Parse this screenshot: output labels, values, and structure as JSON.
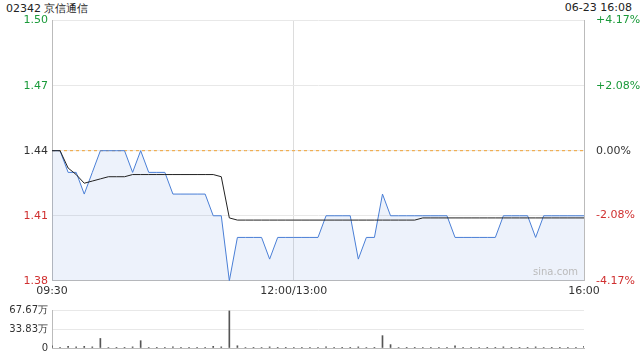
{
  "chart_data": [
    {
      "type": "line",
      "title": "02342 京信通信",
      "subtitle": "06-23 16:08",
      "watermark": "sina.com",
      "categories": [
        "09:30",
        null,
        null,
        null,
        null,
        null,
        null,
        null,
        null,
        null,
        null,
        null,
        null,
        null,
        null,
        null,
        null,
        null,
        null,
        null,
        null,
        null,
        null,
        null,
        null,
        null,
        null,
        null,
        null,
        null,
        "12:00/13:00",
        null,
        null,
        null,
        null,
        null,
        null,
        null,
        null,
        null,
        null,
        null,
        null,
        null,
        null,
        null,
        null,
        null,
        null,
        null,
        null,
        null,
        null,
        null,
        null,
        null,
        null,
        null,
        null,
        null,
        null,
        null,
        null,
        null,
        null,
        null,
        "16:00"
      ],
      "series": [
        {
          "color": "#4a7fd6",
          "values": [
            1.44,
            1.44,
            1.43,
            1.43,
            1.42,
            1.43,
            1.44,
            1.44,
            1.44,
            1.44,
            1.43,
            1.44,
            1.43,
            1.43,
            1.43,
            1.42,
            1.42,
            1.42,
            1.42,
            1.42,
            1.41,
            1.41,
            1.38,
            1.4,
            1.4,
            1.4,
            1.4,
            1.39,
            1.4,
            1.4,
            1.4,
            1.4,
            1.4,
            1.4,
            1.41,
            1.41,
            1.41,
            1.41,
            1.39,
            1.4,
            1.4,
            1.42,
            1.41,
            1.41,
            1.41,
            1.41,
            1.41,
            1.41,
            1.41,
            1.41,
            1.4,
            1.4,
            1.4,
            1.4,
            1.4,
            1.4,
            1.41,
            1.41,
            1.41,
            1.41,
            1.4,
            1.41,
            1.41,
            1.41,
            1.41,
            1.41,
            1.41
          ]
        },
        {
          "color": "#222222",
          "values": [
            1.44,
            1.44,
            1.432,
            1.429,
            1.425,
            1.426,
            1.427,
            1.428,
            1.428,
            1.428,
            1.429,
            1.429,
            1.429,
            1.429,
            1.429,
            1.429,
            1.429,
            1.429,
            1.429,
            1.429,
            1.429,
            1.428,
            1.409,
            1.408,
            1.408,
            1.408,
            1.408,
            1.408,
            1.408,
            1.408,
            1.408,
            1.408,
            1.408,
            1.408,
            1.408,
            1.408,
            1.408,
            1.408,
            1.408,
            1.408,
            1.408,
            1.408,
            1.408,
            1.408,
            1.408,
            1.408,
            1.409,
            1.409,
            1.409,
            1.409,
            1.409,
            1.409,
            1.409,
            1.409,
            1.409,
            1.409,
            1.409,
            1.409,
            1.409,
            1.409,
            1.409,
            1.409,
            1.409,
            1.409,
            1.409,
            1.409,
            1.409
          ]
        }
      ],
      "prev_close": {
        "value": 1.44,
        "color": "#f0a030",
        "line_style": "dashed"
      },
      "ylim": [
        1.38,
        1.5
      ],
      "yticks": [
        1.38,
        1.41,
        1.44,
        1.47,
        {
          "value": 1.5,
          "label": "1.50"
        }
      ],
      "y2lim": [
        -4.17,
        4.17
      ],
      "y2ticks": [
        {
          "value": -4.17,
          "label": "-4.17%"
        },
        {
          "value": -2.08,
          "label": "-2.08%"
        },
        {
          "value": 0,
          "label": "0.00%"
        },
        {
          "value": 2.08,
          "label": "+2.08%"
        },
        {
          "value": 4.17,
          "label": "+4.17%"
        }
      ],
      "grid": true
    },
    {
      "type": "bar",
      "color": "#555555",
      "categories": [
        null,
        null,
        null,
        null,
        null,
        null,
        null,
        null,
        null,
        null,
        null,
        null,
        null,
        null,
        null,
        null,
        null,
        null,
        null,
        null,
        null,
        null,
        null,
        null,
        null,
        null,
        null,
        null,
        null,
        null,
        null,
        null,
        null,
        null,
        null,
        null,
        null,
        null,
        null,
        null,
        null,
        null,
        null,
        null,
        null,
        null,
        null,
        null,
        null,
        null,
        null,
        null,
        null,
        null,
        null,
        null,
        null,
        null,
        null,
        null,
        null,
        null,
        null,
        null,
        null,
        null,
        null
      ],
      "values": [
        40000,
        10000,
        30000,
        20000,
        30000,
        20000,
        170000,
        10000,
        5000,
        5000,
        20000,
        130000,
        10000,
        5000,
        5000,
        20000,
        5000,
        5000,
        10000,
        5000,
        30000,
        20000,
        660000,
        40000,
        10000,
        5000,
        10000,
        20000,
        5000,
        5000,
        10000,
        5000,
        5000,
        5000,
        20000,
        5000,
        5000,
        5000,
        20000,
        10000,
        5000,
        220000,
        60000,
        10000,
        5000,
        5000,
        10000,
        5000,
        5000,
        5000,
        40000,
        5000,
        5000,
        10000,
        5000,
        5000,
        20000,
        5000,
        5000,
        5000,
        20000,
        10000,
        5000,
        5000,
        10000,
        10000,
        30000
      ],
      "ylim": [
        0,
        676700
      ],
      "yticks": [
        0,
        {
          "value": 338300,
          "label": "33.83万"
        },
        {
          "value": 676700,
          "label": "67.67万"
        }
      ],
      "tick_labels": "y",
      "grid": true
    }
  ]
}
